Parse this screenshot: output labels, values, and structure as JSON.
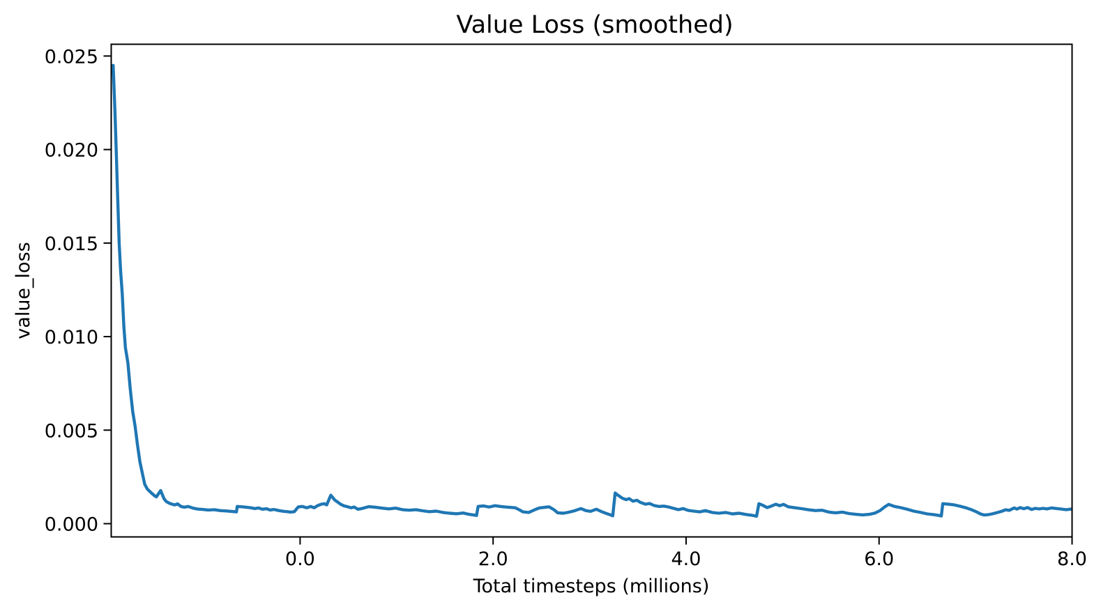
{
  "figure": {
    "background": "#ffffff"
  },
  "colors": {
    "line": "#1f77b4",
    "text": "#000000",
    "axes": "#000000",
    "background": "#ffffff"
  },
  "chart_data": {
    "type": "line",
    "title": "Value Loss (smoothed)",
    "xlabel": "Total timesteps (millions)",
    "ylabel": "value_loss",
    "grid": false,
    "legend": false,
    "xlim": [
      -1.9575,
      8.0
    ],
    "ylim": [
      -0.000708,
      0.025629
    ],
    "x_ticks": [
      {
        "value": 0.0,
        "label": "0.0"
      },
      {
        "value": 2.0,
        "label": "2.0"
      },
      {
        "value": 4.0,
        "label": "4.0"
      },
      {
        "value": 6.0,
        "label": "6.0"
      },
      {
        "value": 8.0,
        "label": "8.0"
      }
    ],
    "y_ticks": [
      {
        "value": 0.0,
        "label": "0.000"
      },
      {
        "value": 0.005,
        "label": "0.005"
      },
      {
        "value": 0.01,
        "label": "0.010"
      },
      {
        "value": 0.015,
        "label": "0.015"
      },
      {
        "value": 0.02,
        "label": "0.020"
      },
      {
        "value": 0.025,
        "label": "0.025"
      }
    ],
    "series": [
      {
        "name": "value_loss",
        "color": "#1f77b4",
        "points": [
          [
            -1.937,
            0.0245
          ],
          [
            -1.92,
            0.0222
          ],
          [
            -1.905,
            0.0198
          ],
          [
            -1.89,
            0.0174
          ],
          [
            -1.875,
            0.015
          ],
          [
            -1.86,
            0.0135
          ],
          [
            -1.843,
            0.0123
          ],
          [
            -1.826,
            0.0105
          ],
          [
            -1.81,
            0.0094
          ],
          [
            -1.785,
            0.0086
          ],
          [
            -1.76,
            0.0072
          ],
          [
            -1.735,
            0.006
          ],
          [
            -1.71,
            0.0052
          ],
          [
            -1.685,
            0.0042
          ],
          [
            -1.66,
            0.0033
          ],
          [
            -1.635,
            0.0027
          ],
          [
            -1.61,
            0.0021
          ],
          [
            -1.583,
            0.00185
          ],
          [
            -1.539,
            0.00163
          ],
          [
            -1.51,
            0.0015
          ],
          [
            -1.49,
            0.00143
          ],
          [
            -1.445,
            0.00177
          ],
          [
            -1.41,
            0.00133
          ],
          [
            -1.387,
            0.00118
          ],
          [
            -1.35,
            0.00108
          ],
          [
            -1.3,
            0.001
          ],
          [
            -1.27,
            0.00106
          ],
          [
            -1.235,
            0.00092
          ],
          [
            -1.2,
            0.00088
          ],
          [
            -1.16,
            0.00092
          ],
          [
            -1.11,
            0.00083
          ],
          [
            -1.06,
            0.00078
          ],
          [
            -1.01,
            0.00076
          ],
          [
            -0.95,
            0.00073
          ],
          [
            -0.89,
            0.00075
          ],
          [
            -0.83,
            0.0007
          ],
          [
            -0.77,
            0.00068
          ],
          [
            -0.72,
            0.00066
          ],
          [
            -0.68,
            0.00064
          ],
          [
            -0.66,
            0.00063
          ],
          [
            -0.652,
            0.00092
          ],
          [
            -0.6,
            0.0009
          ],
          [
            -0.55,
            0.00087
          ],
          [
            -0.51,
            0.00085
          ],
          [
            -0.47,
            0.00081
          ],
          [
            -0.43,
            0.00084
          ],
          [
            -0.39,
            0.00077
          ],
          [
            -0.35,
            0.0008
          ],
          [
            -0.31,
            0.00073
          ],
          [
            -0.27,
            0.00076
          ],
          [
            -0.22,
            0.0007
          ],
          [
            -0.17,
            0.00066
          ],
          [
            -0.13,
            0.00064
          ],
          [
            -0.1,
            0.00062
          ],
          [
            -0.06,
            0.00064
          ],
          [
            -0.02,
            0.00089
          ],
          [
            0.02,
            0.00092
          ],
          [
            0.07,
            0.00085
          ],
          [
            0.11,
            0.00092
          ],
          [
            0.145,
            0.00085
          ],
          [
            0.18,
            0.00096
          ],
          [
            0.22,
            0.00104
          ],
          [
            0.25,
            0.00107
          ],
          [
            0.275,
            0.001
          ],
          [
            0.318,
            0.00152
          ],
          [
            0.36,
            0.00126
          ],
          [
            0.39,
            0.00115
          ],
          [
            0.42,
            0.00104
          ],
          [
            0.45,
            0.00096
          ],
          [
            0.48,
            0.00092
          ],
          [
            0.53,
            0.00085
          ],
          [
            0.56,
            0.00089
          ],
          [
            0.6,
            0.00077
          ],
          [
            0.64,
            0.00081
          ],
          [
            0.71,
            0.00091
          ],
          [
            0.78,
            0.00088
          ],
          [
            0.85,
            0.00083
          ],
          [
            0.92,
            0.00079
          ],
          [
            0.99,
            0.00083
          ],
          [
            1.06,
            0.00075
          ],
          [
            1.13,
            0.00072
          ],
          [
            1.2,
            0.00075
          ],
          [
            1.27,
            0.00069
          ],
          [
            1.34,
            0.00064
          ],
          [
            1.41,
            0.00067
          ],
          [
            1.48,
            0.0006
          ],
          [
            1.55,
            0.00056
          ],
          [
            1.62,
            0.00053
          ],
          [
            1.69,
            0.00057
          ],
          [
            1.75,
            0.0005
          ],
          [
            1.8,
            0.00046
          ],
          [
            1.828,
            0.00044
          ],
          [
            1.845,
            0.00092
          ],
          [
            1.9,
            0.00095
          ],
          [
            1.96,
            0.00089
          ],
          [
            2.02,
            0.00096
          ],
          [
            2.09,
            0.00091
          ],
          [
            2.16,
            0.00088
          ],
          [
            2.23,
            0.00085
          ],
          [
            2.28,
            0.00072
          ],
          [
            2.31,
            0.00063
          ],
          [
            2.37,
            0.0006
          ],
          [
            2.43,
            0.00074
          ],
          [
            2.48,
            0.00084
          ],
          [
            2.54,
            0.00088
          ],
          [
            2.58,
            0.0009
          ],
          [
            2.63,
            0.00075
          ],
          [
            2.67,
            0.00058
          ],
          [
            2.73,
            0.00056
          ],
          [
            2.79,
            0.00062
          ],
          [
            2.85,
            0.0007
          ],
          [
            2.91,
            0.00081
          ],
          [
            2.96,
            0.0007
          ],
          [
            3.01,
            0.00066
          ],
          [
            3.07,
            0.00077
          ],
          [
            3.12,
            0.00065
          ],
          [
            3.17,
            0.00055
          ],
          [
            3.21,
            0.00048
          ],
          [
            3.24,
            0.00042
          ],
          [
            3.265,
            0.00164
          ],
          [
            3.3,
            0.0015
          ],
          [
            3.34,
            0.00136
          ],
          [
            3.38,
            0.00128
          ],
          [
            3.41,
            0.00134
          ],
          [
            3.45,
            0.0012
          ],
          [
            3.49,
            0.00125
          ],
          [
            3.53,
            0.00113
          ],
          [
            3.58,
            0.00104
          ],
          [
            3.62,
            0.00108
          ],
          [
            3.67,
            0.00097
          ],
          [
            3.72,
            0.00092
          ],
          [
            3.77,
            0.00094
          ],
          [
            3.82,
            0.00089
          ],
          [
            3.87,
            0.00082
          ],
          [
            3.92,
            0.00075
          ],
          [
            3.97,
            0.00081
          ],
          [
            4.02,
            0.00071
          ],
          [
            4.08,
            0.00067
          ],
          [
            4.14,
            0.00063
          ],
          [
            4.2,
            0.0007
          ],
          [
            4.27,
            0.0006
          ],
          [
            4.34,
            0.00056
          ],
          [
            4.41,
            0.0006
          ],
          [
            4.48,
            0.00052
          ],
          [
            4.55,
            0.00056
          ],
          [
            4.62,
            0.00049
          ],
          [
            4.68,
            0.00045
          ],
          [
            4.73,
            0.0004
          ],
          [
            4.755,
            0.00107
          ],
          [
            4.8,
            0.00097
          ],
          [
            4.84,
            0.00086
          ],
          [
            4.88,
            0.00093
          ],
          [
            4.93,
            0.00104
          ],
          [
            4.97,
            0.00096
          ],
          [
            5.01,
            0.00103
          ],
          [
            5.06,
            0.0009
          ],
          [
            5.13,
            0.00085
          ],
          [
            5.2,
            0.0008
          ],
          [
            5.27,
            0.00074
          ],
          [
            5.34,
            0.0007
          ],
          [
            5.41,
            0.00072
          ],
          [
            5.48,
            0.00062
          ],
          [
            5.55,
            0.00058
          ],
          [
            5.62,
            0.00062
          ],
          [
            5.69,
            0.00054
          ],
          [
            5.76,
            0.0005
          ],
          [
            5.83,
            0.00047
          ],
          [
            5.9,
            0.0005
          ],
          [
            5.96,
            0.00057
          ],
          [
            6.01,
            0.0007
          ],
          [
            6.06,
            0.0009
          ],
          [
            6.1,
            0.00103
          ],
          [
            6.16,
            0.00092
          ],
          [
            6.22,
            0.00086
          ],
          [
            6.29,
            0.00077
          ],
          [
            6.36,
            0.00067
          ],
          [
            6.43,
            0.0006
          ],
          [
            6.5,
            0.00052
          ],
          [
            6.57,
            0.00048
          ],
          [
            6.62,
            0.00044
          ],
          [
            6.645,
            0.00041
          ],
          [
            6.66,
            0.00107
          ],
          [
            6.72,
            0.00104
          ],
          [
            6.78,
            0.001
          ],
          [
            6.84,
            0.00093
          ],
          [
            6.9,
            0.00085
          ],
          [
            6.96,
            0.00074
          ],
          [
            7.01,
            0.00063
          ],
          [
            7.05,
            0.00052
          ],
          [
            7.09,
            0.00046
          ],
          [
            7.13,
            0.00048
          ],
          [
            7.17,
            0.00052
          ],
          [
            7.22,
            0.00059
          ],
          [
            7.27,
            0.00066
          ],
          [
            7.31,
            0.00074
          ],
          [
            7.35,
            0.00071
          ],
          [
            7.4,
            0.00084
          ],
          [
            7.43,
            0.00078
          ],
          [
            7.46,
            0.00086
          ],
          [
            7.5,
            0.0008
          ],
          [
            7.54,
            0.00086
          ],
          [
            7.58,
            0.00076
          ],
          [
            7.62,
            0.00082
          ],
          [
            7.66,
            0.00079
          ],
          [
            7.7,
            0.00082
          ],
          [
            7.74,
            0.00079
          ],
          [
            7.79,
            0.00084
          ],
          [
            7.84,
            0.00081
          ],
          [
            7.89,
            0.00078
          ],
          [
            7.94,
            0.00075
          ],
          [
            7.99,
            0.00078
          ]
        ]
      }
    ]
  }
}
